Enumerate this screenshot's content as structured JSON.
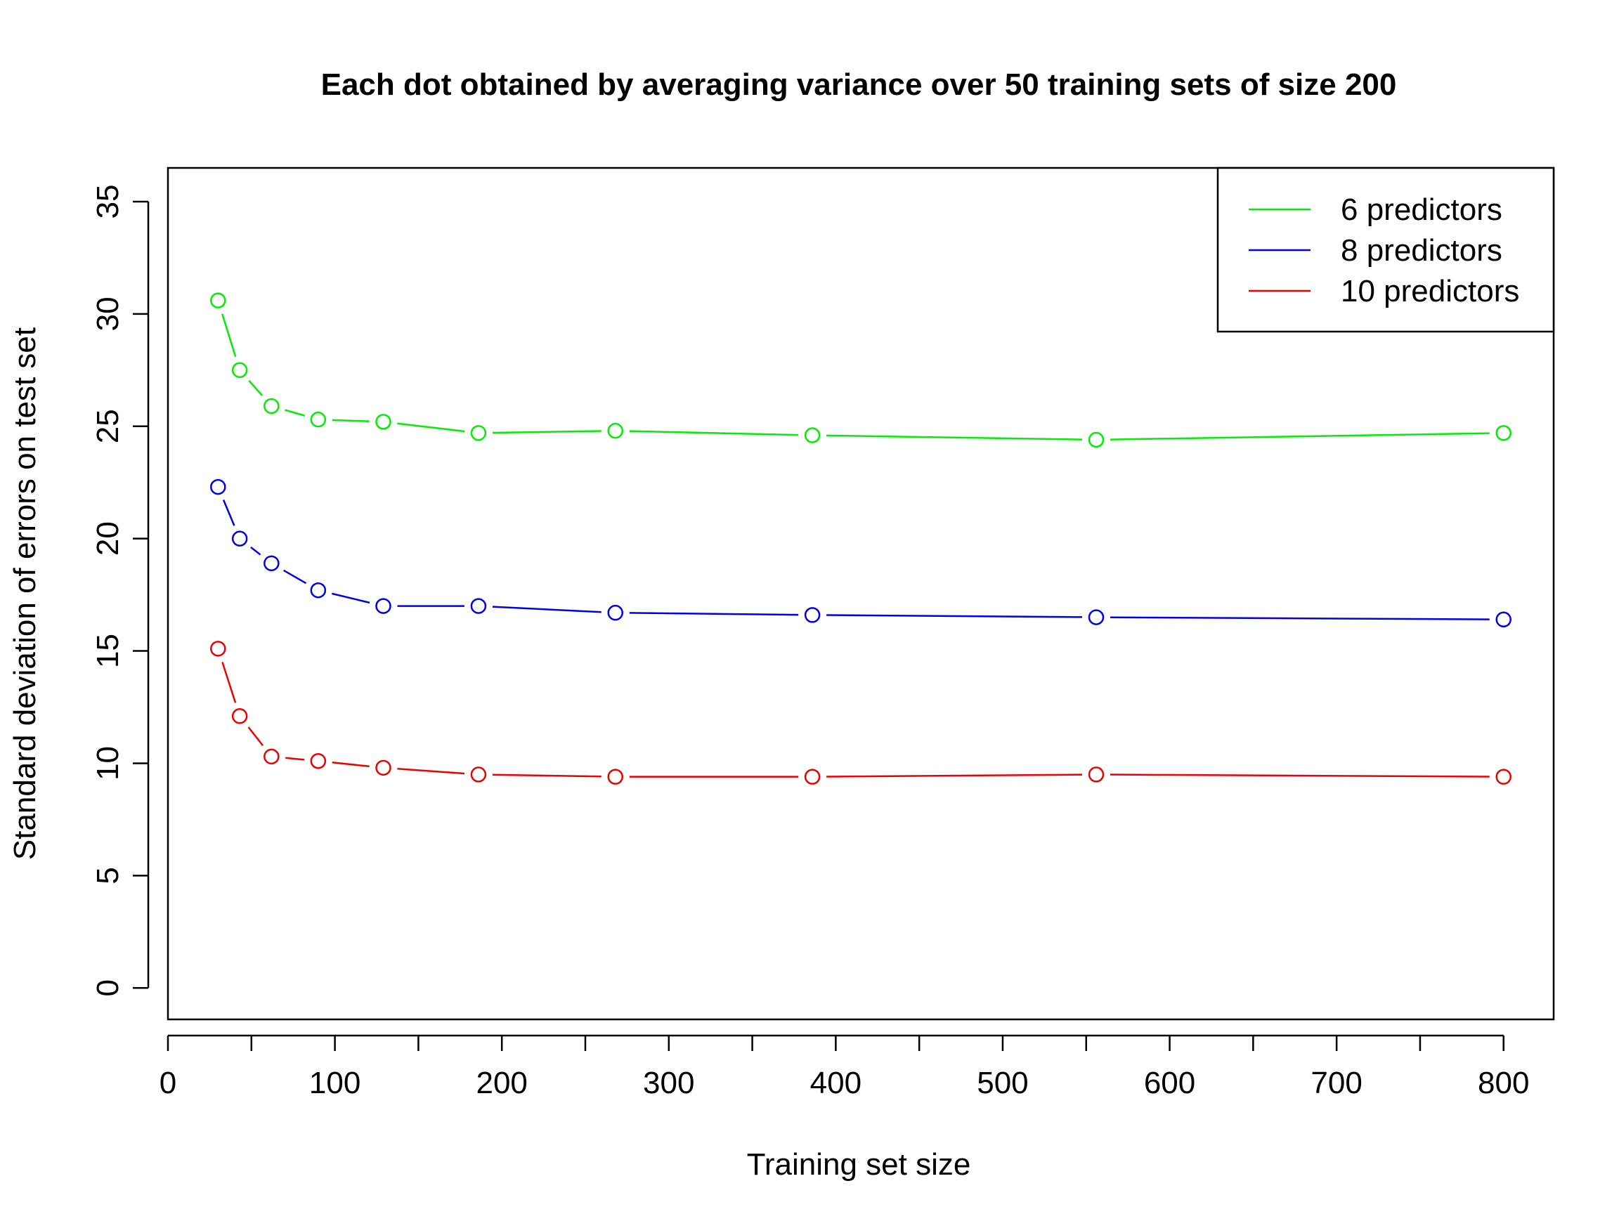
{
  "chart_data": {
    "type": "line",
    "title": "Each dot obtained by averaging variance over 50 training sets of size 200",
    "xlabel": "Training set size",
    "ylabel": "Standard deviation of errors on test set",
    "xlim": [
      0,
      830
    ],
    "ylim": [
      -1.4,
      36.5
    ],
    "xticks": [
      0,
      100,
      200,
      300,
      400,
      500,
      600,
      700,
      800
    ],
    "xtick_labels": [
      "0",
      "100",
      "200",
      "300",
      "400",
      "500",
      "600",
      "700",
      "800"
    ],
    "xminor_ticks": [
      50,
      150,
      250,
      350,
      450,
      550,
      650,
      750
    ],
    "yticks": [
      0,
      5,
      10,
      15,
      20,
      25,
      30,
      35
    ],
    "ytick_labels": [
      "0",
      "5",
      "10",
      "15",
      "20",
      "25",
      "30",
      "35"
    ],
    "grid": false,
    "legend_position": "top-right",
    "x": [
      30,
      43,
      62,
      90,
      129,
      186,
      268,
      386,
      556,
      800
    ],
    "series": [
      {
        "name": "6 predictors",
        "color": "#00ee00",
        "values": [
          30.6,
          27.5,
          25.9,
          25.3,
          25.2,
          24.7,
          24.8,
          24.6,
          24.4,
          24.7
        ]
      },
      {
        "name": "8 predictors",
        "color": "#0000ee",
        "values": [
          22.3,
          20.0,
          18.9,
          17.7,
          17.0,
          17.0,
          16.7,
          16.6,
          16.5,
          16.4
        ]
      },
      {
        "name": "10 predictors",
        "color": "#ee0000",
        "values": [
          15.1,
          12.1,
          10.3,
          10.1,
          9.8,
          9.5,
          9.4,
          9.4,
          9.5,
          9.4
        ]
      }
    ]
  }
}
